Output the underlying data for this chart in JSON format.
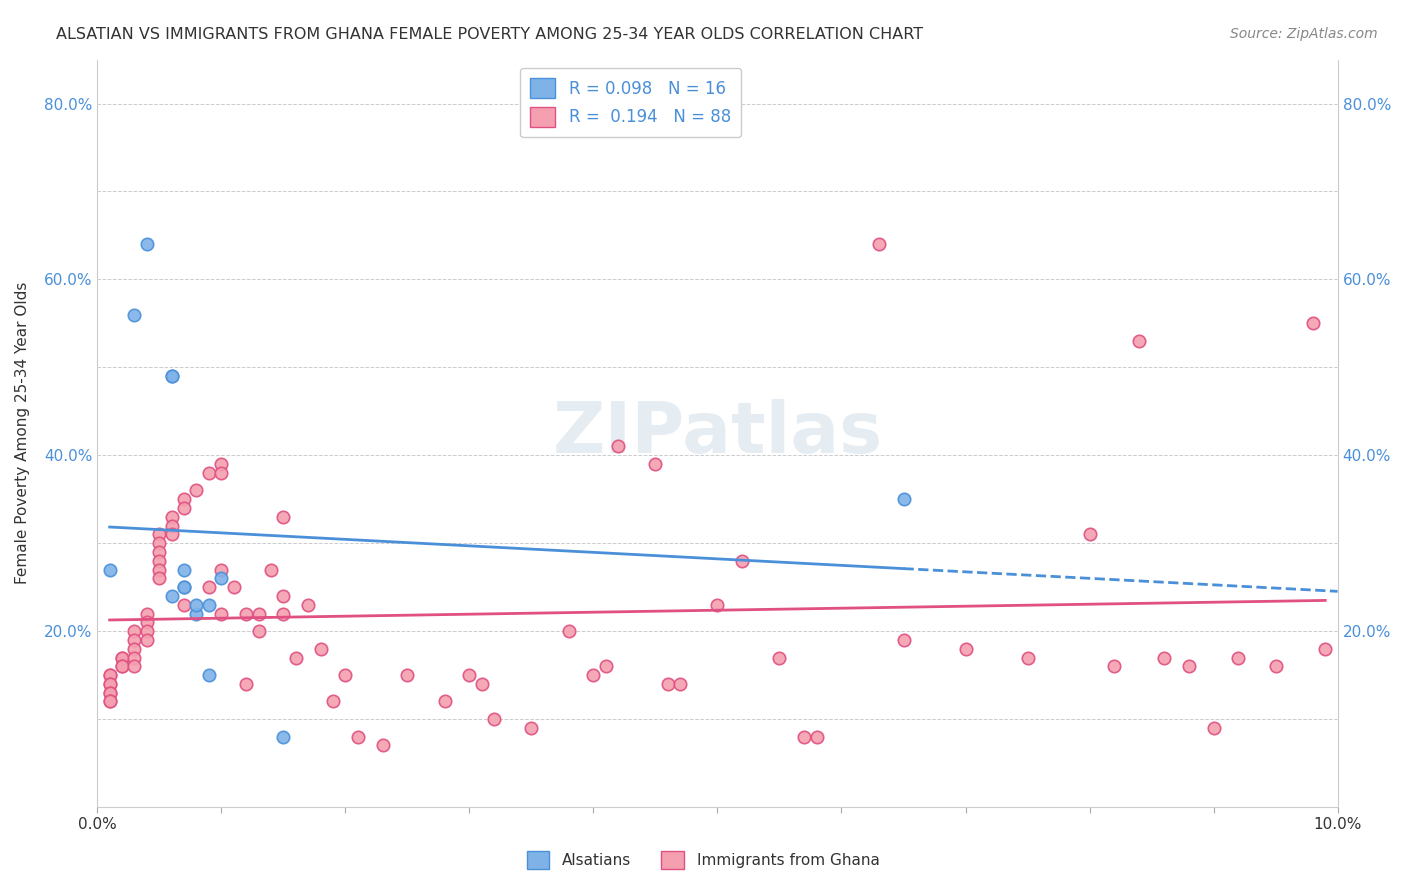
{
  "title": "ALSATIAN VS IMMIGRANTS FROM GHANA FEMALE POVERTY AMONG 25-34 YEAR OLDS CORRELATION CHART",
  "source": "Source: ZipAtlas.com",
  "xlabel": "",
  "ylabel": "Female Poverty Among 25-34 Year Olds",
  "xlim": [
    0.0,
    0.1
  ],
  "ylim": [
    0.0,
    0.85
  ],
  "x_ticks": [
    0.0,
    0.01,
    0.02,
    0.03,
    0.04,
    0.05,
    0.06,
    0.07,
    0.08,
    0.09,
    0.1
  ],
  "x_tick_labels": [
    "0.0%",
    "",
    "",
    "",
    "",
    "",
    "",
    "",
    "",
    "",
    "10.0%"
  ],
  "y_ticks": [
    0.0,
    0.1,
    0.2,
    0.3,
    0.4,
    0.5,
    0.6,
    0.7,
    0.8
  ],
  "y_tick_labels": [
    "",
    "",
    "20.0%",
    "",
    "40.0%",
    "",
    "60.0%",
    "",
    "80.0%"
  ],
  "legend_r1": "R = 0.098",
  "legend_n1": "N = 16",
  "legend_r2": "R = 0.194",
  "legend_n2": "N = 88",
  "color_alsatian": "#7fb3e8",
  "color_ghana": "#f4a0b0",
  "line_color_alsatian": "#4a90d9",
  "line_color_ghana": "#e05080",
  "watermark": "ZIPatlas",
  "alsatian_x": [
    0.001,
    0.003,
    0.004,
    0.006,
    0.006,
    0.006,
    0.007,
    0.007,
    0.007,
    0.008,
    0.008,
    0.009,
    0.009,
    0.01,
    0.015,
    0.065
  ],
  "alsatian_y": [
    0.27,
    0.56,
    0.64,
    0.49,
    0.49,
    0.24,
    0.25,
    0.25,
    0.27,
    0.22,
    0.23,
    0.23,
    0.15,
    0.26,
    0.08,
    0.35
  ],
  "ghana_x": [
    0.001,
    0.001,
    0.001,
    0.001,
    0.001,
    0.001,
    0.001,
    0.001,
    0.002,
    0.002,
    0.002,
    0.002,
    0.003,
    0.003,
    0.003,
    0.003,
    0.003,
    0.004,
    0.004,
    0.004,
    0.004,
    0.005,
    0.005,
    0.005,
    0.005,
    0.005,
    0.005,
    0.006,
    0.006,
    0.006,
    0.007,
    0.007,
    0.007,
    0.008,
    0.009,
    0.009,
    0.01,
    0.01,
    0.01,
    0.01,
    0.011,
    0.012,
    0.012,
    0.013,
    0.013,
    0.014,
    0.015,
    0.015,
    0.015,
    0.016,
    0.017,
    0.018,
    0.019,
    0.02,
    0.021,
    0.023,
    0.025,
    0.028,
    0.03,
    0.031,
    0.032,
    0.035,
    0.038,
    0.04,
    0.041,
    0.042,
    0.045,
    0.046,
    0.047,
    0.05,
    0.052,
    0.055,
    0.057,
    0.058,
    0.063,
    0.065,
    0.07,
    0.075,
    0.08,
    0.082,
    0.084,
    0.086,
    0.088,
    0.09,
    0.092,
    0.095,
    0.098,
    0.099
  ],
  "ghana_y": [
    0.15,
    0.15,
    0.14,
    0.14,
    0.13,
    0.13,
    0.12,
    0.12,
    0.17,
    0.17,
    0.16,
    0.16,
    0.2,
    0.19,
    0.18,
    0.17,
    0.16,
    0.22,
    0.21,
    0.2,
    0.19,
    0.31,
    0.3,
    0.29,
    0.28,
    0.27,
    0.26,
    0.33,
    0.32,
    0.31,
    0.35,
    0.34,
    0.23,
    0.36,
    0.38,
    0.25,
    0.39,
    0.38,
    0.27,
    0.22,
    0.25,
    0.22,
    0.14,
    0.22,
    0.2,
    0.27,
    0.24,
    0.33,
    0.22,
    0.17,
    0.23,
    0.18,
    0.12,
    0.15,
    0.08,
    0.07,
    0.15,
    0.12,
    0.15,
    0.14,
    0.1,
    0.09,
    0.2,
    0.15,
    0.16,
    0.41,
    0.39,
    0.14,
    0.14,
    0.23,
    0.28,
    0.17,
    0.08,
    0.08,
    0.64,
    0.19,
    0.18,
    0.17,
    0.31,
    0.16,
    0.53,
    0.17,
    0.16,
    0.09,
    0.17,
    0.16,
    0.55,
    0.18
  ]
}
